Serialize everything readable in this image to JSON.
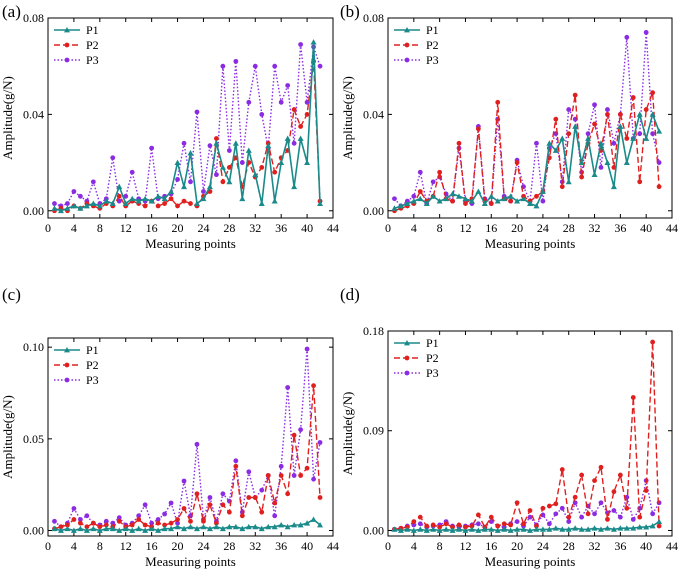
{
  "colors": {
    "P1": "#1a8a8a",
    "P2": "#e0201e",
    "P3": "#8b2be2",
    "axis": "#000000"
  },
  "chart_data": [
    {
      "panel": "(a)",
      "type": "line",
      "xlabel": "Measuring points",
      "ylabel": "Amplitude(g/N)",
      "xlim": [
        0,
        44
      ],
      "ylim": [
        -0.003,
        0.08
      ],
      "xticks": [
        0,
        4,
        8,
        12,
        16,
        20,
        24,
        28,
        32,
        36,
        40,
        44
      ],
      "yticks": [
        0.0,
        0.04,
        0.08
      ],
      "ytick_labels": [
        "0.00",
        "0.04",
        "0.08"
      ],
      "legend_position": "top-left",
      "x": [
        1,
        2,
        3,
        4,
        5,
        6,
        7,
        8,
        9,
        10,
        11,
        12,
        13,
        14,
        15,
        16,
        17,
        18,
        19,
        20,
        21,
        22,
        23,
        24,
        25,
        26,
        27,
        28,
        29,
        30,
        31,
        32,
        33,
        34,
        35,
        36,
        37,
        38,
        39,
        40,
        41,
        42
      ],
      "series": [
        {
          "name": "P1",
          "marker": "triangle",
          "dash": "solid",
          "values": [
            0.001,
            0.0,
            0.001,
            0.002,
            0.001,
            0.002,
            0.003,
            0.002,
            0.004,
            0.003,
            0.01,
            0.003,
            0.005,
            0.004,
            0.005,
            0.004,
            0.006,
            0.005,
            0.008,
            0.02,
            0.01,
            0.024,
            0.003,
            0.005,
            0.01,
            0.028,
            0.018,
            0.012,
            0.028,
            0.005,
            0.025,
            0.015,
            0.003,
            0.027,
            0.004,
            0.02,
            0.03,
            0.01,
            0.03,
            0.02,
            0.07,
            0.003
          ]
        },
        {
          "name": "P2",
          "marker": "circle",
          "dash": "dashed",
          "values": [
            0.0,
            0.001,
            0.0,
            0.002,
            0.001,
            0.003,
            0.002,
            0.001,
            0.003,
            0.002,
            0.006,
            0.002,
            0.004,
            0.003,
            0.002,
            0.004,
            0.002,
            0.003,
            0.005,
            0.002,
            0.004,
            0.003,
            0.002,
            0.006,
            0.008,
            0.03,
            0.012,
            0.018,
            0.022,
            0.01,
            0.02,
            0.014,
            0.018,
            0.028,
            0.016,
            0.022,
            0.025,
            0.042,
            0.035,
            0.04,
            0.062,
            0.004
          ]
        },
        {
          "name": "P3",
          "marker": "circle",
          "dash": "dotted",
          "values": [
            0.003,
            0.002,
            0.003,
            0.008,
            0.006,
            0.004,
            0.012,
            0.003,
            0.005,
            0.022,
            0.004,
            0.006,
            0.016,
            0.005,
            0.004,
            0.026,
            0.005,
            0.006,
            0.007,
            0.013,
            0.028,
            0.012,
            0.041,
            0.008,
            0.027,
            0.015,
            0.06,
            0.025,
            0.062,
            0.02,
            0.045,
            0.06,
            0.04,
            0.026,
            0.06,
            0.045,
            0.052,
            0.028,
            0.069,
            0.045,
            0.068,
            0.06
          ]
        }
      ]
    },
    {
      "panel": "(b)",
      "type": "line",
      "xlabel": "Measuring points",
      "ylabel": "Amplitude(g/N)",
      "xlim": [
        0,
        44
      ],
      "ylim": [
        -0.003,
        0.08
      ],
      "xticks": [
        0,
        4,
        8,
        12,
        16,
        20,
        24,
        28,
        32,
        36,
        40,
        44
      ],
      "yticks": [
        0.0,
        0.04,
        0.08
      ],
      "ytick_labels": [
        "0.00",
        "0.04",
        "0.08"
      ],
      "legend_position": "top-left",
      "x": [
        1,
        2,
        3,
        4,
        5,
        6,
        7,
        8,
        9,
        10,
        11,
        12,
        13,
        14,
        15,
        16,
        17,
        18,
        19,
        20,
        21,
        22,
        23,
        24,
        25,
        26,
        27,
        28,
        29,
        30,
        31,
        32,
        33,
        34,
        35,
        36,
        37,
        38,
        39,
        40,
        41,
        42
      ],
      "series": [
        {
          "name": "P1",
          "marker": "triangle",
          "dash": "solid",
          "values": [
            0.001,
            0.002,
            0.003,
            0.004,
            0.005,
            0.003,
            0.006,
            0.004,
            0.005,
            0.007,
            0.006,
            0.005,
            0.004,
            0.008,
            0.003,
            0.006,
            0.004,
            0.005,
            0.006,
            0.004,
            0.005,
            0.003,
            0.002,
            0.008,
            0.028,
            0.025,
            0.03,
            0.012,
            0.035,
            0.02,
            0.03,
            0.015,
            0.028,
            0.02,
            0.01,
            0.035,
            0.02,
            0.03,
            0.04,
            0.03,
            0.04,
            0.033
          ]
        },
        {
          "name": "P2",
          "marker": "circle",
          "dash": "dashed",
          "values": [
            0.0,
            0.001,
            0.002,
            0.003,
            0.008,
            0.004,
            0.006,
            0.016,
            0.005,
            0.004,
            0.028,
            0.003,
            0.005,
            0.034,
            0.004,
            0.003,
            0.045,
            0.005,
            0.004,
            0.02,
            0.006,
            0.004,
            0.006,
            0.008,
            0.022,
            0.038,
            0.01,
            0.032,
            0.048,
            0.014,
            0.028,
            0.036,
            0.025,
            0.04,
            0.018,
            0.04,
            0.03,
            0.047,
            0.012,
            0.042,
            0.049,
            0.01
          ]
        },
        {
          "name": "P3",
          "marker": "circle",
          "dash": "dotted",
          "values": [
            0.005,
            0.002,
            0.004,
            0.006,
            0.016,
            0.003,
            0.012,
            0.014,
            0.007,
            0.004,
            0.026,
            0.004,
            0.003,
            0.035,
            0.005,
            0.003,
            0.038,
            0.006,
            0.004,
            0.021,
            0.01,
            0.004,
            0.028,
            0.004,
            0.026,
            0.032,
            0.012,
            0.042,
            0.038,
            0.016,
            0.032,
            0.044,
            0.018,
            0.042,
            0.028,
            0.04,
            0.072,
            0.03,
            0.032,
            0.074,
            0.032,
            0.02
          ]
        }
      ]
    },
    {
      "panel": "(c)",
      "type": "line",
      "xlabel": "Measuring points",
      "ylabel": "Amplitude(g/N)",
      "xlim": [
        0,
        44
      ],
      "ylim": [
        -0.003,
        0.105
      ],
      "xticks": [
        0,
        4,
        8,
        12,
        16,
        20,
        24,
        28,
        32,
        36,
        40,
        44
      ],
      "yticks": [
        0.0,
        0.05,
        0.1
      ],
      "ytick_labels": [
        "0.00",
        "0.05",
        "0.10"
      ],
      "legend_position": "top-left",
      "x": [
        1,
        2,
        3,
        4,
        5,
        6,
        7,
        8,
        9,
        10,
        11,
        12,
        13,
        14,
        15,
        16,
        17,
        18,
        19,
        20,
        21,
        22,
        23,
        24,
        25,
        26,
        27,
        28,
        29,
        30,
        31,
        32,
        33,
        34,
        35,
        36,
        37,
        38,
        39,
        40,
        41,
        42
      ],
      "series": [
        {
          "name": "P1",
          "marker": "triangle",
          "dash": "solid",
          "values": [
            0.001,
            0.0,
            0.001,
            0.0,
            0.001,
            0.0,
            0.001,
            0.0,
            0.001,
            0.001,
            0.0,
            0.001,
            0.0,
            0.001,
            0.0,
            0.001,
            0.0,
            0.001,
            0.001,
            0.002,
            0.001,
            0.002,
            0.001,
            0.002,
            0.001,
            0.002,
            0.001,
            0.002,
            0.002,
            0.001,
            0.002,
            0.002,
            0.001,
            0.002,
            0.002,
            0.003,
            0.002,
            0.003,
            0.003,
            0.004,
            0.006,
            0.003
          ]
        },
        {
          "name": "P2",
          "marker": "circle",
          "dash": "dashed",
          "values": [
            0.001,
            0.002,
            0.003,
            0.006,
            0.004,
            0.002,
            0.004,
            0.002,
            0.003,
            0.002,
            0.005,
            0.002,
            0.003,
            0.006,
            0.003,
            0.002,
            0.004,
            0.003,
            0.004,
            0.006,
            0.012,
            0.005,
            0.02,
            0.005,
            0.014,
            0.004,
            0.014,
            0.01,
            0.035,
            0.008,
            0.018,
            0.018,
            0.01,
            0.03,
            0.015,
            0.03,
            0.02,
            0.052,
            0.03,
            0.034,
            0.079,
            0.018
          ]
        },
        {
          "name": "P3",
          "marker": "circle",
          "dash": "dotted",
          "values": [
            0.005,
            0.002,
            0.004,
            0.012,
            0.006,
            0.008,
            0.004,
            0.003,
            0.005,
            0.004,
            0.007,
            0.003,
            0.004,
            0.008,
            0.014,
            0.004,
            0.006,
            0.009,
            0.015,
            0.004,
            0.027,
            0.008,
            0.047,
            0.006,
            0.018,
            0.005,
            0.02,
            0.016,
            0.038,
            0.01,
            0.032,
            0.018,
            0.022,
            0.03,
            0.008,
            0.035,
            0.078,
            0.03,
            0.055,
            0.099,
            0.028,
            0.048
          ]
        }
      ]
    },
    {
      "panel": "(d)",
      "type": "line",
      "xlabel": "Measuring points",
      "ylabel": "Amplitude(g/N)",
      "xlim": [
        0,
        44
      ],
      "ylim": [
        -0.005,
        0.18
      ],
      "xticks": [
        0,
        4,
        8,
        12,
        16,
        20,
        24,
        28,
        32,
        36,
        40,
        44
      ],
      "yticks": [
        0.0,
        0.09,
        0.18
      ],
      "ytick_labels": [
        "0.00",
        "0.09",
        "0.18"
      ],
      "legend_position": "top-left",
      "x": [
        1,
        2,
        3,
        4,
        5,
        6,
        7,
        8,
        9,
        10,
        11,
        12,
        13,
        14,
        15,
        16,
        17,
        18,
        19,
        20,
        21,
        22,
        23,
        24,
        25,
        26,
        27,
        28,
        29,
        30,
        31,
        32,
        33,
        34,
        35,
        36,
        37,
        38,
        39,
        40,
        41,
        42
      ],
      "series": [
        {
          "name": "P1",
          "marker": "triangle",
          "dash": "solid",
          "values": [
            0.001,
            0.0,
            0.001,
            0.0,
            0.001,
            0.0,
            0.001,
            0.0,
            0.001,
            0.0,
            0.001,
            0.0,
            0.001,
            0.0,
            0.001,
            0.001,
            0.0,
            0.001,
            0.0,
            0.001,
            0.001,
            0.0,
            0.001,
            0.001,
            0.001,
            0.002,
            0.001,
            0.001,
            0.002,
            0.001,
            0.001,
            0.002,
            0.001,
            0.002,
            0.001,
            0.002,
            0.002,
            0.002,
            0.003,
            0.003,
            0.004,
            0.008
          ]
        },
        {
          "name": "P2",
          "marker": "circle",
          "dash": "dashed",
          "values": [
            0.001,
            0.002,
            0.003,
            0.008,
            0.012,
            0.004,
            0.005,
            0.003,
            0.006,
            0.003,
            0.005,
            0.003,
            0.004,
            0.014,
            0.003,
            0.012,
            0.004,
            0.006,
            0.005,
            0.025,
            0.006,
            0.018,
            0.004,
            0.02,
            0.022,
            0.024,
            0.055,
            0.012,
            0.03,
            0.05,
            0.015,
            0.045,
            0.057,
            0.01,
            0.035,
            0.05,
            0.02,
            0.12,
            0.012,
            0.036,
            0.17,
            0.004
          ]
        },
        {
          "name": "P3",
          "marker": "circle",
          "dash": "dotted",
          "values": [
            0.001,
            0.002,
            0.004,
            0.005,
            0.006,
            0.003,
            0.004,
            0.005,
            0.008,
            0.004,
            0.003,
            0.004,
            0.005,
            0.006,
            0.003,
            0.008,
            0.004,
            0.003,
            0.006,
            0.008,
            0.004,
            0.012,
            0.005,
            0.014,
            0.006,
            0.015,
            0.02,
            0.008,
            0.025,
            0.012,
            0.022,
            0.015,
            0.025,
            0.016,
            0.018,
            0.012,
            0.03,
            0.01,
            0.02,
            0.045,
            0.015,
            0.025
          ]
        }
      ]
    }
  ]
}
